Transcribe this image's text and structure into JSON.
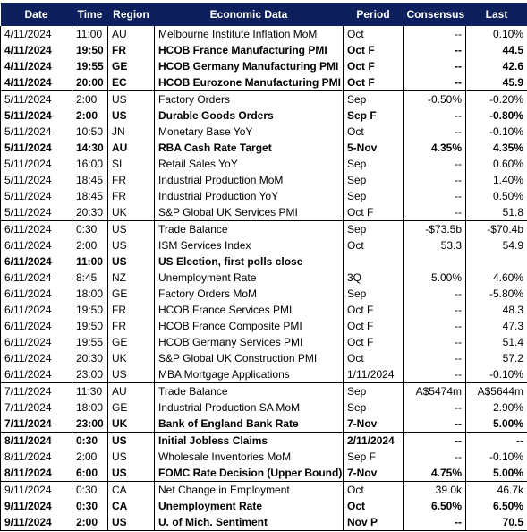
{
  "columns": [
    "Date",
    "Time",
    "Region",
    "Economic Data",
    "Period",
    "Consensus",
    "Last"
  ],
  "rows": [
    {
      "date": "4/11/2024",
      "time": "11:00",
      "region": "AU",
      "data": "Melbourne Institute Inflation MoM",
      "period": "Oct",
      "consensus": "--",
      "last": "0.10%",
      "style": ""
    },
    {
      "date": "4/11/2024",
      "time": "19:50",
      "region": "FR",
      "data": "HCOB France Manufacturing PMI",
      "period": "Oct F",
      "consensus": "--",
      "last": "44.5",
      "style": "bold"
    },
    {
      "date": "4/11/2024",
      "time": "19:55",
      "region": "GE",
      "data": "HCOB Germany Manufacturing PMI",
      "period": "Oct F",
      "consensus": "--",
      "last": "42.6",
      "style": "bold"
    },
    {
      "date": "4/11/2024",
      "time": "20:00",
      "region": "EC",
      "data": "HCOB Eurozone Manufacturing PMI",
      "period": "Oct F",
      "consensus": "--",
      "last": "45.9",
      "style": "bold"
    },
    {
      "date": "5/11/2024",
      "time": "2:00",
      "region": "US",
      "data": "Factory Orders",
      "period": "Sep",
      "consensus": "-0.50%",
      "last": "-0.20%",
      "style": ""
    },
    {
      "date": "5/11/2024",
      "time": "2:00",
      "region": "US",
      "data": "Durable Goods Orders",
      "period": "Sep F",
      "consensus": "--",
      "last": "-0.80%",
      "style": "bold"
    },
    {
      "date": "5/11/2024",
      "time": "10:50",
      "region": "JN",
      "data": "Monetary Base YoY",
      "period": "Oct",
      "consensus": "--",
      "last": "-0.10%",
      "style": ""
    },
    {
      "date": "5/11/2024",
      "time": "14:30",
      "region": "AU",
      "data": "RBA Cash Rate Target",
      "period": "5-Nov",
      "consensus": "4.35%",
      "last": "4.35%",
      "style": "highlight"
    },
    {
      "date": "5/11/2024",
      "time": "16:00",
      "region": "SI",
      "data": "Retail Sales YoY",
      "period": "Sep",
      "consensus": "--",
      "last": "0.60%",
      "style": ""
    },
    {
      "date": "5/11/2024",
      "time": "18:45",
      "region": "FR",
      "data": "Industrial Production MoM",
      "period": "Sep",
      "consensus": "--",
      "last": "1.40%",
      "style": ""
    },
    {
      "date": "5/11/2024",
      "time": "18:45",
      "region": "FR",
      "data": "Industrial Production YoY",
      "period": "Sep",
      "consensus": "--",
      "last": "0.50%",
      "style": ""
    },
    {
      "date": "5/11/2024",
      "time": "20:30",
      "region": "UK",
      "data": "S&P Global UK Services PMI",
      "period": "Oct F",
      "consensus": "--",
      "last": "51.8",
      "style": ""
    },
    {
      "date": "6/11/2024",
      "time": "0:30",
      "region": "US",
      "data": "Trade Balance",
      "period": "Sep",
      "consensus": "-$73.5b",
      "last": "-$70.4b",
      "style": ""
    },
    {
      "date": "6/11/2024",
      "time": "2:00",
      "region": "US",
      "data": "ISM Services Index",
      "period": "Oct",
      "consensus": "53.3",
      "last": "54.9",
      "style": ""
    },
    {
      "date": "6/11/2024",
      "time": "11:00",
      "region": "US",
      "data": "US Election, first polls close",
      "period": "",
      "consensus": "",
      "last": "",
      "style": "bold"
    },
    {
      "date": "6/11/2024",
      "time": "8:45",
      "region": "NZ",
      "data": "Unemployment Rate",
      "period": "3Q",
      "consensus": "5.00%",
      "last": "4.60%",
      "style": ""
    },
    {
      "date": "6/11/2024",
      "time": "18:00",
      "region": "GE",
      "data": "Factory Orders MoM",
      "period": "Sep",
      "consensus": "--",
      "last": "-5.80%",
      "style": ""
    },
    {
      "date": "6/11/2024",
      "time": "19:50",
      "region": "FR",
      "data": "HCOB France Services PMI",
      "period": "Oct F",
      "consensus": "--",
      "last": "48.3",
      "style": ""
    },
    {
      "date": "6/11/2024",
      "time": "19:50",
      "region": "FR",
      "data": "HCOB France Composite PMI",
      "period": "Oct F",
      "consensus": "--",
      "last": "47.3",
      "style": ""
    },
    {
      "date": "6/11/2024",
      "time": "19:55",
      "region": "GE",
      "data": "HCOB Germany Services PMI",
      "period": "Oct F",
      "consensus": "--",
      "last": "51.4",
      "style": ""
    },
    {
      "date": "6/11/2024",
      "time": "20:30",
      "region": "UK",
      "data": "S&P Global UK Construction PMI",
      "period": "Oct",
      "consensus": "--",
      "last": "57.2",
      "style": ""
    },
    {
      "date": "6/11/2024",
      "time": "23:00",
      "region": "US",
      "data": "MBA Mortgage Applications",
      "period": "1/11/2024",
      "consensus": "--",
      "last": "-0.10%",
      "style": ""
    },
    {
      "date": "7/11/2024",
      "time": "11:30",
      "region": "AU",
      "data": "Trade Balance",
      "period": "Sep",
      "consensus": "A$5474m",
      "last": "A$5644m",
      "style": ""
    },
    {
      "date": "7/11/2024",
      "time": "18:00",
      "region": "GE",
      "data": "Industrial Production SA MoM",
      "period": "Sep",
      "consensus": "--",
      "last": "2.90%",
      "style": ""
    },
    {
      "date": "7/11/2024",
      "time": "23:00",
      "region": "UK",
      "data": "Bank of England Bank Rate",
      "period": "7-Nov",
      "consensus": "--",
      "last": "5.00%",
      "style": "highlight"
    },
    {
      "date": "8/11/2024",
      "time": "0:30",
      "region": "US",
      "data": "Initial Jobless Claims",
      "period": "2/11/2024",
      "consensus": "--",
      "last": "--",
      "style": "bold"
    },
    {
      "date": "8/11/2024",
      "time": "2:00",
      "region": "US",
      "data": "Wholesale Inventories MoM",
      "period": "Sep F",
      "consensus": "--",
      "last": "-0.10%",
      "style": ""
    },
    {
      "date": "8/11/2024",
      "time": "6:00",
      "region": "US",
      "data": "FOMC Rate Decision (Upper Bound)",
      "period": "7-Nov",
      "consensus": "4.75%",
      "last": "5.00%",
      "style": "highlight"
    },
    {
      "date": "9/11/2024",
      "time": "0:30",
      "region": "CA",
      "data": "Net Change in Employment",
      "period": "Oct",
      "consensus": "39.0k",
      "last": "46.7k",
      "style": ""
    },
    {
      "date": "9/11/2024",
      "time": "0:30",
      "region": "CA",
      "data": "Unemployment Rate",
      "period": "Oct",
      "consensus": "6.50%",
      "last": "6.50%",
      "style": "bold"
    },
    {
      "date": "9/11/2024",
      "time": "2:00",
      "region": "US",
      "data": "U. of Mich. Sentiment",
      "period": "Nov P",
      "consensus": "--",
      "last": "70.5",
      "style": "bold"
    }
  ]
}
